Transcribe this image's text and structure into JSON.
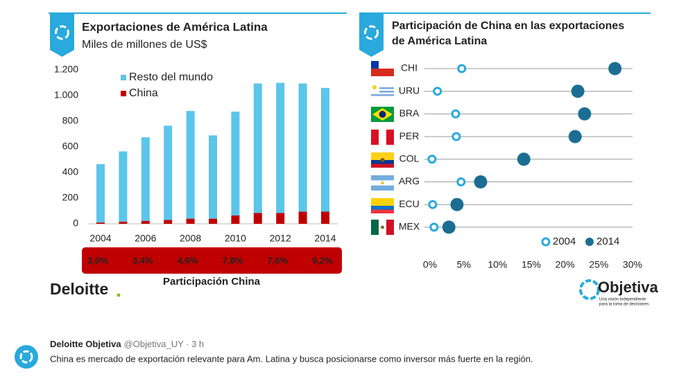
{
  "chart_data": [
    {
      "type": "stacked_bar",
      "title": "Exportaciones de América Latina",
      "subtitle": "Miles de millones de US$",
      "categories": [
        "2004",
        null,
        "2006",
        null,
        "2008",
        null,
        "2010",
        null,
        "2012",
        null,
        "2014"
      ],
      "series": [
        {
          "name": "Resto del mundo",
          "color": "#5bc5ea",
          "values": [
            455,
            548,
            652,
            735,
            840,
            650,
            810,
            1010,
            1015,
            1000,
            965
          ]
        },
        {
          "name": "China",
          "color": "#c00000",
          "values": [
            10,
            17,
            23,
            30,
            40,
            40,
            65,
            85,
            85,
            95,
            95
          ]
        }
      ],
      "ylim": [
        0,
        1200
      ],
      "yticks": [
        0,
        200,
        400,
        600,
        800,
        {
          "value": 1000,
          "label": "1.000"
        },
        {
          "value": 1200,
          "label": "1.200"
        }
      ],
      "annotation": {
        "label": "Participación China",
        "values": [
          3.0,
          3.4,
          4.6,
          7.8,
          7.6,
          9.2
        ],
        "value_labels": [
          "3,0%",
          "3,4%",
          "4,6%",
          "7,8%",
          "7,6%",
          "9,2%"
        ],
        "color": "#c00000"
      }
    },
    {
      "type": "dot",
      "title": [
        "Participación de China en las exportaciones",
        "de América Latina"
      ],
      "categories": [
        "CHI",
        "URU",
        "BRA",
        "PER",
        "COL",
        "ARG",
        "ECU",
        "MEX"
      ],
      "series": [
        {
          "name": "2004",
          "color": "#29a9dc",
          "style": "hollow",
          "values": [
            4.7,
            1.1,
            3.8,
            3.9,
            0.3,
            4.6,
            0.4,
            0.6
          ]
        },
        {
          "name": "2014",
          "color": "#1b6e92",
          "style": "filled",
          "values": [
            27.4,
            21.9,
            22.9,
            21.5,
            13.9,
            7.5,
            4.0,
            2.8
          ]
        }
      ],
      "xlim": [
        0,
        30
      ],
      "xticks": [
        {
          "value": 0,
          "label": "0%"
        },
        {
          "value": 5,
          "label": "5%"
        },
        {
          "value": 10,
          "label": "10%"
        },
        {
          "value": 15,
          "label": "15%"
        },
        {
          "value": 20,
          "label": "20%"
        },
        {
          "value": 25,
          "label": "25%"
        },
        {
          "value": 30,
          "label": "30%"
        }
      ]
    }
  ],
  "logos": {
    "deloitte": "Deloitte",
    "objetiva": "Objetiva",
    "tagline": [
      "Una visión independiente",
      "para la toma de decisiones"
    ]
  },
  "tweet": {
    "author": "Deloitte Objetiva",
    "handle": "@Objetiva_UY · 3 h",
    "text": "China es mercado de exportación relevante para Am. Latina y busca posicionarse como inversor más fuerte en la región."
  }
}
